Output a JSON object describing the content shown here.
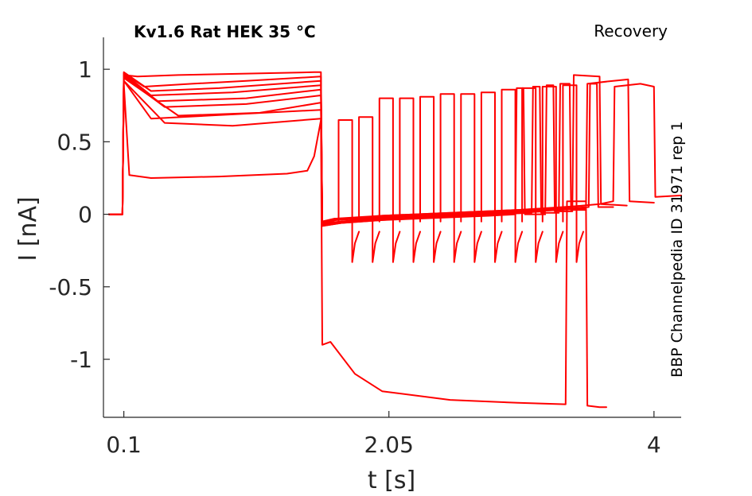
{
  "chart_data": {
    "type": "line",
    "title": "Kv1.6  Rat  HEK  35 °C",
    "subtitle": "Recovery",
    "annotation": "BBP Channelpedia ID 31971 rep 1",
    "xlabel": "t [s]",
    "ylabel": "I [nA]",
    "xlim": [
      -0.05,
      4.2
    ],
    "ylim": [
      -1.4,
      1.22
    ],
    "xticks": [
      0.1,
      2.05,
      4
    ],
    "xtick_labels": [
      "0.1",
      "2.05",
      "4"
    ],
    "yticks": [
      1,
      0.5,
      0,
      -0.5,
      -1
    ],
    "ytick_labels": [
      "1",
      "0.5",
      "0",
      "-0.5",
      "-1"
    ],
    "grid": false,
    "color": "#ff0000",
    "series": [
      {
        "points": [
          [
            -0.01,
            0
          ],
          [
            0.09,
            0
          ],
          [
            0.1,
            0.96
          ],
          [
            0.2,
            0.95
          ],
          [
            0.5,
            0.96
          ],
          [
            1.0,
            0.97
          ],
          [
            1.5,
            0.98
          ],
          [
            1.55,
            0.98
          ],
          [
            1.56,
            -0.05
          ],
          [
            1.65,
            -0.03
          ],
          [
            2.0,
            -0.02
          ],
          [
            3.0,
            0.02
          ],
          [
            3.6,
            0.07
          ],
          [
            3.7,
            0.09
          ],
          [
            3.71,
            0.88
          ],
          [
            3.9,
            0.9
          ],
          [
            4.0,
            0.88
          ],
          [
            4.01,
            0.12
          ],
          [
            4.2,
            0.13
          ]
        ]
      },
      {
        "points": [
          [
            -0.01,
            0
          ],
          [
            0.09,
            0
          ],
          [
            0.1,
            0.97
          ],
          [
            0.25,
            0.88
          ],
          [
            0.6,
            0.9
          ],
          [
            1.0,
            0.92
          ],
          [
            1.55,
            0.95
          ],
          [
            1.56,
            -0.05
          ],
          [
            1.65,
            -0.03
          ],
          [
            2.0,
            -0.01
          ],
          [
            3.0,
            0.03
          ],
          [
            3.5,
            0.06
          ],
          [
            3.51,
            0.9
          ],
          [
            3.7,
            0.92
          ],
          [
            3.81,
            0.93
          ],
          [
            3.82,
            0.09
          ],
          [
            4.0,
            0.08
          ]
        ]
      },
      {
        "points": [
          [
            -0.01,
            0
          ],
          [
            0.09,
            0
          ],
          [
            0.1,
            0.98
          ],
          [
            0.3,
            0.85
          ],
          [
            0.8,
            0.87
          ],
          [
            1.55,
            0.92
          ],
          [
            1.56,
            -0.05
          ],
          [
            1.65,
            -0.04
          ],
          [
            2.0,
            -0.01
          ],
          [
            3.0,
            0.03
          ],
          [
            3.4,
            0.05
          ],
          [
            3.41,
            0.96
          ],
          [
            3.6,
            0.95
          ],
          [
            3.61,
            0.07
          ],
          [
            3.8,
            0.06
          ]
        ]
      },
      {
        "points": [
          [
            -0.01,
            0
          ],
          [
            0.09,
            0
          ],
          [
            0.1,
            0.97
          ],
          [
            0.3,
            0.82
          ],
          [
            0.9,
            0.84
          ],
          [
            1.55,
            0.89
          ],
          [
            1.56,
            -0.06
          ],
          [
            1.66,
            -0.04
          ],
          [
            2.0,
            -0.02
          ],
          [
            3.0,
            0.02
          ],
          [
            3.52,
            0.05
          ],
          [
            3.53,
            0.9
          ],
          [
            3.58,
            0.9
          ],
          [
            3.59,
            0.05
          ],
          [
            3.7,
            0.05
          ]
        ]
      },
      {
        "points": [
          [
            -0.01,
            0
          ],
          [
            0.09,
            0
          ],
          [
            0.1,
            0.96
          ],
          [
            0.35,
            0.78
          ],
          [
            1.0,
            0.8
          ],
          [
            1.55,
            0.86
          ],
          [
            1.56,
            -0.06
          ],
          [
            1.7,
            -0.05
          ],
          [
            2.0,
            -0.02
          ],
          [
            2.8,
            0.01
          ],
          [
            3.3,
            0.03
          ],
          [
            3.31,
            0.9
          ],
          [
            3.38,
            0.9
          ],
          [
            3.39,
            0.03
          ],
          [
            3.5,
            0.03
          ]
        ]
      },
      {
        "points": [
          [
            -0.01,
            0
          ],
          [
            0.09,
            0
          ],
          [
            0.1,
            0.95
          ],
          [
            0.4,
            0.74
          ],
          [
            1.0,
            0.76
          ],
          [
            1.55,
            0.82
          ],
          [
            1.56,
            -0.07
          ],
          [
            1.7,
            -0.05
          ],
          [
            2.0,
            -0.03
          ],
          [
            2.8,
            0.0
          ],
          [
            3.2,
            0.02
          ],
          [
            3.21,
            0.89
          ],
          [
            3.26,
            0.89
          ],
          [
            3.27,
            0.02
          ],
          [
            3.4,
            0.02
          ]
        ]
      },
      {
        "points": [
          [
            -0.01,
            0
          ],
          [
            0.09,
            0
          ],
          [
            0.1,
            0.94
          ],
          [
            0.5,
            0.68
          ],
          [
            1.1,
            0.7
          ],
          [
            1.55,
            0.77
          ],
          [
            1.56,
            -0.07
          ],
          [
            1.7,
            -0.06
          ],
          [
            2.0,
            -0.03
          ],
          [
            2.8,
            0.0
          ],
          [
            3.1,
            0.01
          ],
          [
            3.11,
            0.88
          ],
          [
            3.16,
            0.88
          ],
          [
            3.17,
            0.01
          ],
          [
            3.3,
            0.01
          ]
        ]
      },
      {
        "points": [
          [
            -0.01,
            0
          ],
          [
            0.09,
            0
          ],
          [
            0.1,
            0.92
          ],
          [
            0.4,
            0.63
          ],
          [
            0.9,
            0.61
          ],
          [
            1.55,
            0.66
          ],
          [
            1.56,
            -0.08
          ],
          [
            1.7,
            -0.06
          ],
          [
            2.0,
            -0.04
          ],
          [
            2.8,
            -0.01
          ],
          [
            2.98,
            0.0
          ],
          [
            2.99,
            0.87
          ],
          [
            3.04,
            0.87
          ],
          [
            3.05,
            0.0
          ],
          [
            3.2,
            0.0
          ]
        ]
      },
      {
        "points": [
          [
            -0.01,
            0
          ],
          [
            0.09,
            0
          ],
          [
            0.1,
            0.9
          ],
          [
            0.14,
            0.27
          ],
          [
            0.3,
            0.25
          ],
          [
            0.8,
            0.26
          ],
          [
            1.3,
            0.28
          ],
          [
            1.45,
            0.3
          ],
          [
            1.5,
            0.4
          ],
          [
            1.55,
            0.65
          ],
          [
            1.56,
            -0.9
          ],
          [
            1.62,
            -0.88
          ],
          [
            1.8,
            -1.1
          ],
          [
            2.0,
            -1.22
          ],
          [
            2.5,
            -1.28
          ],
          [
            3.0,
            -1.3
          ],
          [
            3.35,
            -1.31
          ],
          [
            3.36,
            0.09
          ],
          [
            3.5,
            0.09
          ]
        ]
      },
      {
        "points": [
          [
            -0.01,
            0
          ],
          [
            0.09,
            0
          ],
          [
            0.1,
            0.92
          ],
          [
            0.3,
            0.66
          ],
          [
            1.55,
            0.72
          ],
          [
            1.56,
            -0.08
          ],
          [
            1.7,
            -0.06
          ],
          [
            2.0,
            -0.04
          ],
          [
            2.5,
            -0.01
          ],
          [
            3.5,
            0.04
          ],
          [
            3.51,
            -1.32
          ],
          [
            3.6,
            -1.33
          ],
          [
            3.65,
            -1.33
          ]
        ]
      }
    ],
    "recovery_probes": [
      {
        "x": 1.68,
        "y": 0.65
      },
      {
        "x": 1.83,
        "y": 0.67
      },
      {
        "x": 1.98,
        "y": 0.8
      },
      {
        "x": 2.13,
        "y": 0.8
      },
      {
        "x": 2.28,
        "y": 0.81
      },
      {
        "x": 2.43,
        "y": 0.83
      },
      {
        "x": 2.58,
        "y": 0.83
      },
      {
        "x": 2.73,
        "y": 0.84
      },
      {
        "x": 2.88,
        "y": 0.86
      },
      {
        "x": 3.03,
        "y": 0.87
      },
      {
        "x": 3.18,
        "y": 0.88
      },
      {
        "x": 3.33,
        "y": 0.89
      }
    ]
  }
}
